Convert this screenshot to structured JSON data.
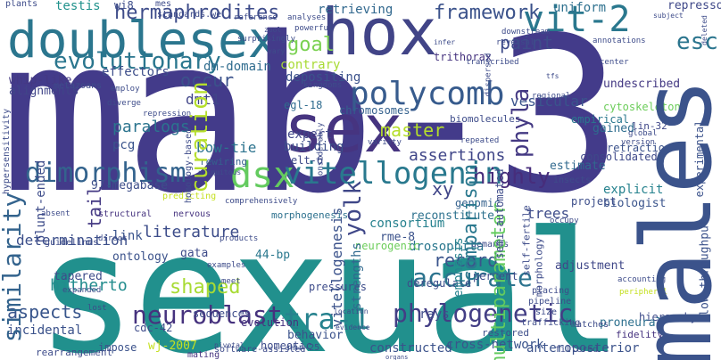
{
  "words": {
    "mab_3": "mab-3",
    "sexual": "sexual",
    "males": "males",
    "hox": "hox",
    "doublesex": "doublesex",
    "sex": "sex",
    "vit_2": "vit-2",
    "polycomb": "polycomb",
    "dimorphism": "dimorphism",
    "dsx": "dsx",
    "vitellogenin": "vitellogenin",
    "evolutionary": "evolutionary",
    "hermaphrodites": "hermaphrodites",
    "goal": "goal",
    "framework": "framework",
    "retrieving": "retrieving",
    "uniform": "uniform",
    "neuroblast": "neuroblast",
    "tra_1": "tra-1",
    "phylogenetic": "phylogenetic",
    "accurate": "accurate",
    "yolk": "yolk",
    "aspects": "aspects",
    "shaped": "shaped",
    "hitherto": "hitherto",
    "master": "master",
    "assertions": "assertions",
    "highly": "highly",
    "paint": "paint",
    "occur": "occur",
    "dmt1": "dmt1",
    "esc": "esc",
    "repressor": "repressor",
    "undescribed": "undescribed",
    "cytoskeleton": "cytoskeleton",
    "vesicular": "vesicular",
    "dm_domain": "dm-domain",
    "paralogs": "paralogs",
    "pcg": "pcg",
    "effectors": "effectors",
    "testis": "testis",
    "wi8": "wi8",
    "alignments": "alignments",
    "whip_like": "whip-like",
    "trithorax": "trithorax",
    "chromosomes": "chromosomes",
    "egl_18": "egl-18",
    "expert": "expert",
    "genomic": "genomic",
    "consortium": "consortium",
    "building": "building",
    "elt_6": "elt-6",
    "reconstitute": "reconstitute",
    "record": "record",
    "trees": "trees",
    "estimate": "estimate",
    "explicit": "explicit",
    "biologist": "biologist",
    "retraction": "retraction",
    "consolidated": "consolidated",
    "gained": "gained",
    "empirical": "empirical",
    "determination": "determination",
    "literature": "literature",
    "link": "link",
    "bp44": "44-bp",
    "tapered": "tapered",
    "gata": "gata",
    "wj_2007": "wj-2007",
    "incidental": "incidental",
    "behavior": "behavior",
    "constructed": "constructed",
    "cross_network": "cross-network",
    "anteroposterior": "anteroposterior",
    "hierarchy": "hierarchy",
    "proneural": "proneural",
    "fidelity": "fidelity",
    "adjustment": "adjustment",
    "drosophila": "drosophila",
    "rays": "rays",
    "rme_8": "rme-8",
    "deregulate": "deregulate",
    "neurogenic": "neurogenic",
    "percent": "percent",
    "pressures": "pressures",
    "sequences": "sequences",
    "xy": "xy",
    "ontology": "ontology",
    "bow_tie": "bow-tie",
    "megabase97": "97-megabase",
    "rewiring": "rewiring",
    "lin_32": "lin-32",
    "project": "project",
    "structural": "structural",
    "nervous": "nervous",
    "morphogenesis": "morphogenesis",
    "demands": "demands",
    "evolution": "evolution",
    "homeotic": "homeotic",
    "nhr_25": "nhr-25",
    "restored": "restored",
    "filtered": "filtered",
    "matches": "matches",
    "software_assisted": "software-assisted",
    "impose": "impose",
    "rearrangement": "rearrangement",
    "mating": "mating",
    "plants": "plants",
    "mes": "mes",
    "standards_we": "standards.we",
    "reference": "reference",
    "analyses": "analyses",
    "powerful": "powerful",
    "surprisingly": "surprisingly",
    "contrary": "contrary",
    "depositing": "depositing",
    "metazoans": "metazoans",
    "employ": "employ",
    "diverge": "diverge",
    "repression": "repression",
    "annotations": "annotations",
    "downstream": "downstream",
    "reversal": "reversal",
    "transcribed": "transcribed",
    "regional": "regional",
    "center": "center",
    "global": "global",
    "version": "version",
    "biomolecules": "biomolecules",
    "kingdoms": "kingdoms",
    "variety": "variety",
    "repeated": "repeated",
    "insects": "insects",
    "occupy": "occupy",
    "accounting": "accounting",
    "peripheral": "peripheral",
    "cdc_42": "cdc-42",
    "direct": "direct",
    "products": "products",
    "examples": "examples",
    "meet": "meet",
    "placing": "placing",
    "pipeline": "pipeline",
    "size": "size",
    "trafficking": "trafficking",
    "expanded": "expanded",
    "lost": "lost",
    "guidelines": "guidelines",
    "absent": "absent",
    "predicting": "predicting",
    "ubiquitous": "ubiquitous",
    "zool": "zool",
    "vary": "vary",
    "infer": "infer",
    "subject": "subject",
    "tfs": "tfs",
    "location": "location",
    "organs": "organs",
    "evidence": "evidence",
    "pivotal": "pivotal",
    "comprehensively": "comprehensively",
    "curation": "curation",
    "phyla": "phyla",
    "similarity": "similarity",
    "tail": "tail",
    "multiparameter": "multiparameter",
    "comparison": "comparison",
    "vitellogenesis": "vitellogenesis",
    "strengths": "strengths",
    "blunt_ended": "blunt-ended",
    "low_throughput": "low-throughput",
    "experimental": "experimental",
    "semi_automated": "semi-automated",
    "self_fertile": "self-fertile",
    "hypersensitivity": "hypersensitivity",
    "morphology": "morphology",
    "emphasis": "emphasis",
    "homology_based": "homology-based",
    "considerably": "considerably",
    "deleted": "deleted",
    "dispersed": "dispersed"
  },
  "palette": {
    "background": "#ffffff",
    "dark_purple": "#433b8a",
    "teal": "#21908d",
    "green": "#64cb5f",
    "yellow_green": "#b5de2b"
  }
}
